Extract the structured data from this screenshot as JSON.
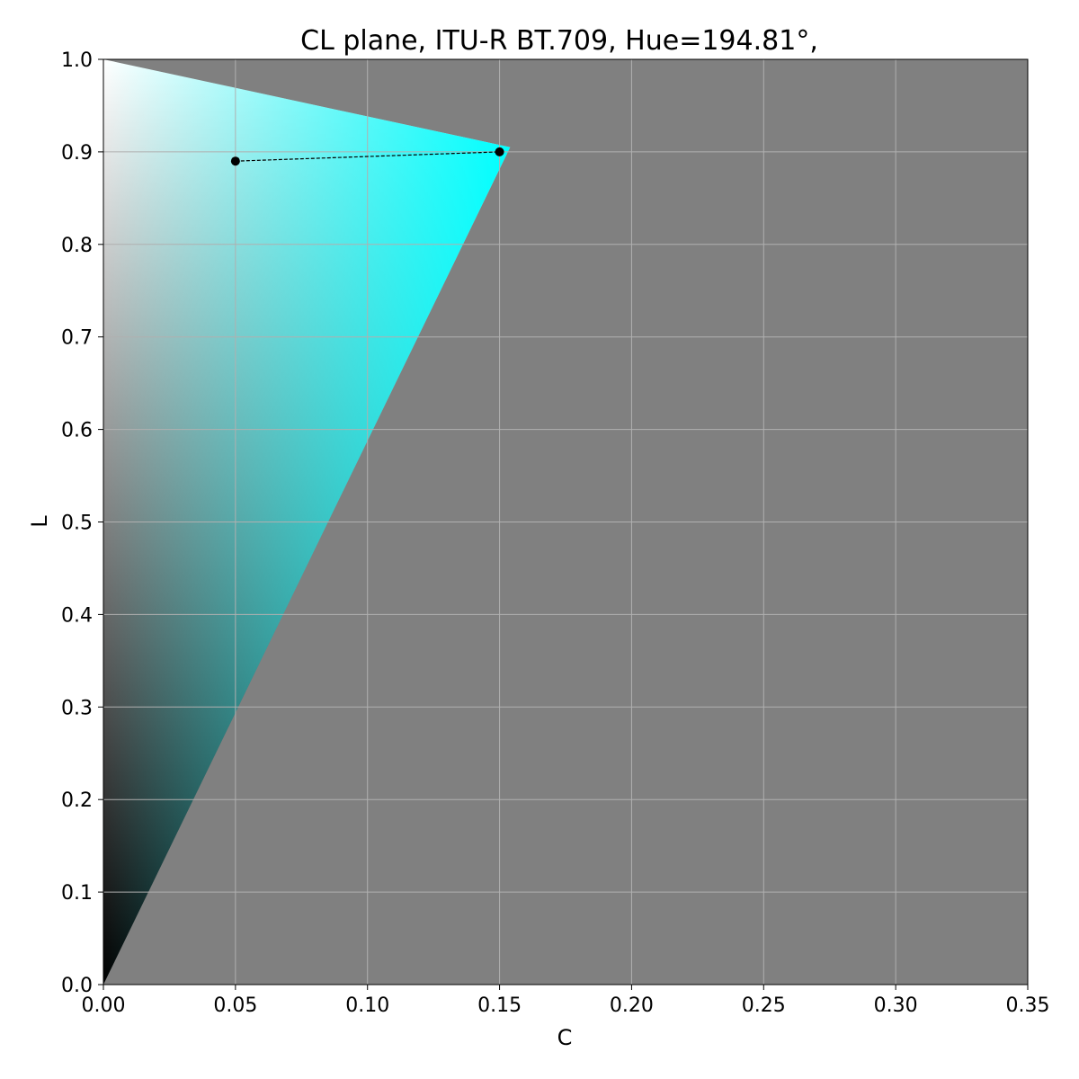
{
  "chart_data": {
    "type": "area",
    "title": "CL plane,  ITU-R BT.709,  Hue=194.81°,",
    "xlabel": "C",
    "ylabel": "L",
    "xlim": [
      0.0,
      0.35
    ],
    "ylim": [
      0.0,
      1.0
    ],
    "xticks": [
      "0.00",
      "0.05",
      "0.10",
      "0.15",
      "0.20",
      "0.25",
      "0.30",
      "0.35"
    ],
    "yticks": [
      "0.0",
      "0.1",
      "0.2",
      "0.3",
      "0.4",
      "0.5",
      "0.6",
      "0.7",
      "0.8",
      "0.9",
      "1.0"
    ],
    "grid": true,
    "background_color": "#808080",
    "gamut_boundary": {
      "points": [
        [
          0.0,
          0.0
        ],
        [
          0.154,
          0.905
        ],
        [
          0.0,
          1.0
        ]
      ],
      "cusp_color": "#00ffff",
      "white_color": "#ffffff",
      "black_color": "#000000"
    },
    "line": {
      "style": "dashed",
      "color": "#000000",
      "points": [
        [
          0.05,
          0.89
        ],
        [
          0.15,
          0.9
        ]
      ]
    }
  }
}
